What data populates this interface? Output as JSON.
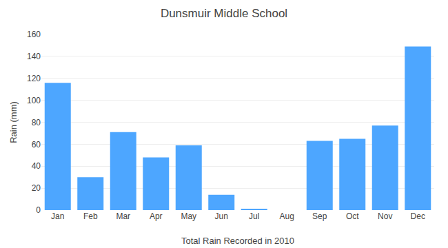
{
  "chart_data": {
    "type": "bar",
    "title": "Dunsmuir Middle School",
    "xlabel": "Total Rain Recorded in 2010",
    "ylabel": "Rain (mm)",
    "categories": [
      "Jan",
      "Feb",
      "Mar",
      "Apr",
      "May",
      "Jun",
      "Jul",
      "Aug",
      "Sep",
      "Oct",
      "Nov",
      "Dec"
    ],
    "values": [
      116,
      30,
      71,
      48,
      59,
      14,
      1,
      0,
      63,
      65,
      77,
      149
    ],
    "color": "#4da6ff",
    "ylim": [
      0,
      160
    ],
    "yticks": [
      0,
      20,
      40,
      60,
      80,
      100,
      120,
      140,
      160
    ],
    "grid": true
  }
}
